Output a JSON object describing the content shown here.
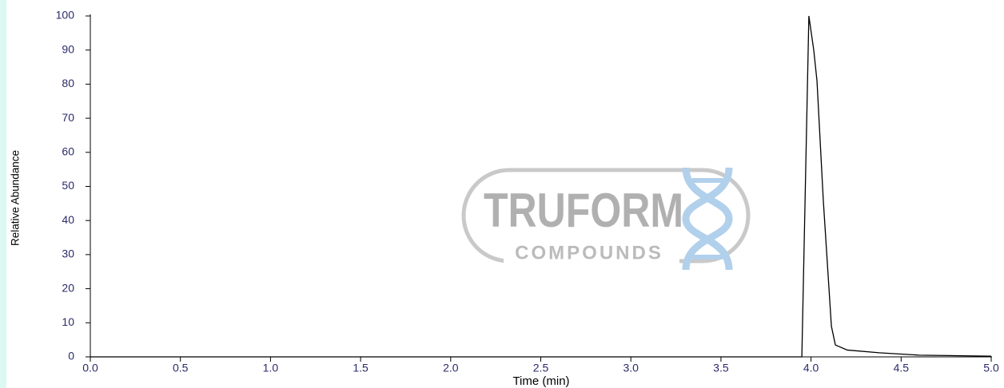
{
  "chart_data": {
    "type": "line",
    "xlabel": "Time (min)",
    "ylabel": "Relative Abundance",
    "watermark": {
      "title": "TRUFORM",
      "subtitle": "COMPOUNDS"
    },
    "xlim": [
      0,
      5
    ],
    "ylim": [
      0,
      100
    ],
    "xticks": [
      {
        "value": 0,
        "label": "0.0"
      },
      {
        "value": 0.5,
        "label": "0.5"
      },
      {
        "value": 1,
        "label": "1.0"
      },
      {
        "value": 1.5,
        "label": "1.5"
      },
      {
        "value": 2,
        "label": "2.0"
      },
      {
        "value": 2.5,
        "label": "2.5"
      },
      {
        "value": 3,
        "label": "3.0"
      },
      {
        "value": 3.5,
        "label": "3.5"
      },
      {
        "value": 4,
        "label": "4.0"
      },
      {
        "value": 4.5,
        "label": "4.5"
      },
      {
        "value": 5,
        "label": "5.0"
      }
    ],
    "yticks": [
      0,
      10,
      20,
      30,
      40,
      50,
      60,
      70,
      80,
      90,
      100
    ],
    "series": [
      {
        "color": "#000000",
        "x": [
          0,
          3.949,
          3.988,
          4.015,
          4.033,
          4.068,
          4.113,
          4.135,
          4.201,
          4.379,
          4.601,
          5.0
        ],
        "values": [
          0,
          0,
          100,
          90,
          81,
          46,
          9,
          3.5,
          2,
          1.2,
          0.5,
          0.2
        ]
      }
    ]
  }
}
